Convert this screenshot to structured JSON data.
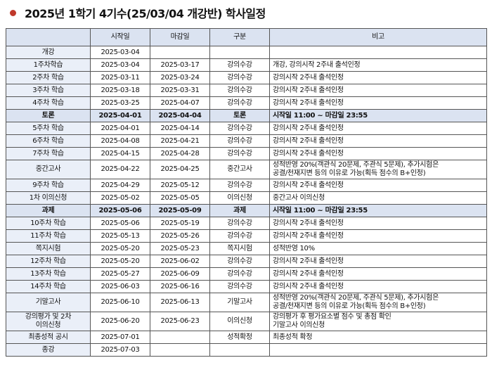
{
  "header": {
    "title": "2025년 1학기 4기수(25/03/04 개강반) 학사일정"
  },
  "table": {
    "columns": [
      null,
      "시작일",
      "마감일",
      "구분",
      "비고"
    ],
    "rows": [
      [
        "개강",
        "2025-03-04",
        null,
        null,
        null
      ],
      [
        "1주차학습",
        "2025-03-04",
        "2025-03-17",
        "강의수강",
        "개강, 강의시작 2주내 출석인정"
      ],
      [
        "2주차 학습",
        "2025-03-11",
        "2025-03-24",
        "강의수강",
        "강의시작 2주내 출석인정"
      ],
      [
        "3주차 학습",
        "2025-03-18",
        "2025-03-31",
        "강의수강",
        "강의시작 2주내 출석인정"
      ],
      [
        "4주차 학습",
        "2025-03-25",
        "2025-04-07",
        "강의수강",
        "강의시작 2주내 출석인정"
      ],
      [
        "토론",
        "2025-04-01",
        "2025-04-04",
        "토론",
        "시작일 11:00 ~ 마감일 23:55"
      ],
      [
        "5주차 학습",
        "2025-04-01",
        "2025-04-14",
        "강의수강",
        "강의시작 2주내 출석인정"
      ],
      [
        "6주차 학습",
        "2025-04-08",
        "2025-04-21",
        "강의수강",
        "강의시작 2주내 출석인정"
      ],
      [
        "7주차 학습",
        "2025-04-15",
        "2025-04-28",
        "강의수강",
        "강의시작 2주내 출석인정"
      ],
      [
        "중간고사",
        "2025-04-22",
        "2025-04-25",
        "중간고사",
        [
          "성적반영 20%(객관식 20문제, 주관식 5문제), 추가시험은",
          "공결/천재지변 등의 이유로 가능(획득 점수의 B+인정)"
        ]
      ],
      [
        "9주차 학습",
        "2025-04-29",
        "2025-05-12",
        "강의수강",
        "강의시작 2주내 출석인정"
      ],
      [
        "1차 이의신청",
        "2025-05-02",
        "2025-05-05",
        "이의신청",
        "중간고사 이의신청"
      ],
      [
        "과제",
        "2025-05-06",
        "2025-05-09",
        "과제",
        "시작일 11:00 ~ 마감일 23:55"
      ],
      [
        "10주차 학습",
        "2025-05-06",
        "2025-05-19",
        "강의수강",
        "강의시작 2주내 출석인정"
      ],
      [
        "11주차 학습",
        "2025-05-13",
        "2025-05-26",
        "강의수강",
        "강의시작 2주내 출석인정"
      ],
      [
        "쪽지시험",
        "2025-05-20",
        "2025-05-23",
        "쪽지시험",
        "성적반영 10%"
      ],
      [
        "12주차 학습",
        "2025-05-20",
        "2025-06-02",
        "강의수강",
        "강의시작 2주내 출석인정"
      ],
      [
        "13주차 학습",
        "2025-05-27",
        "2025-06-09",
        "강의수강",
        "강의시작 2주내 출석인정"
      ],
      [
        "14주차 학습",
        "2025-06-03",
        "2025-06-16",
        "강의수강",
        "강의시작 2주내 출석인정"
      ],
      [
        "기말고사",
        "2025-06-10",
        "2025-06-13",
        "기말고사",
        [
          "성적반영 20%(객관식 20문제, 주관식 5문제), 추가시험은",
          "공결/천재지변 등의 이유로 가능(획득 점수의 B+인정)"
        ]
      ],
      [
        [
          "강의평가 및 2차",
          "이의신청"
        ],
        "2025-06-20",
        "2025-06-23",
        "이의신청",
        [
          "강의평가 후 평가요소별 점수 및 총점 확인",
          "기말고사 이의신청"
        ]
      ],
      [
        "최종성적 공시",
        "2025-07-01",
        null,
        "성적확정",
        "최종성적 확정"
      ],
      [
        "종강",
        "2025-07-03",
        null,
        null,
        null
      ]
    ]
  }
}
